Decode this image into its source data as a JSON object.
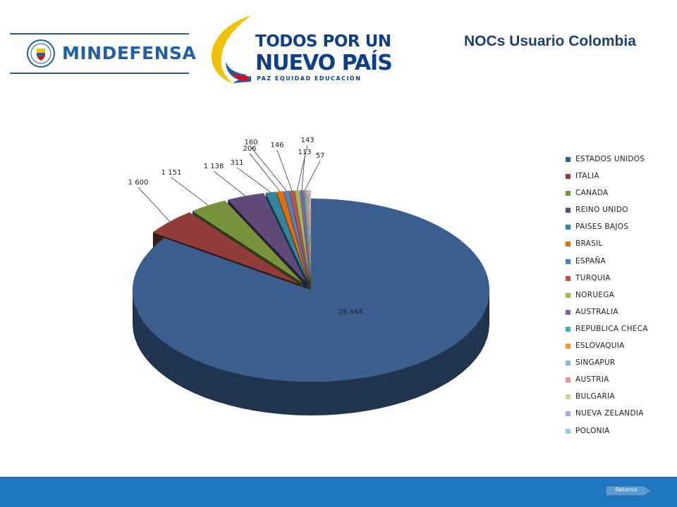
{
  "header": {
    "mindef_logo_text": "MINDEFENSA",
    "gov_slogan_line1": "TODOS POR UN",
    "gov_slogan_line2": "NUEVO PAÍS",
    "gov_slogan_line3": "PAZ  EQUIDAD  EDUCACIÓN",
    "title": "NOCs Usuario Colombia"
  },
  "chart_data": {
    "type": "pie",
    "style": "3d-exploded",
    "title": "",
    "legend_position": "right",
    "categories": [
      "ESTADOS UNIDOS",
      "ITALIA",
      "CANADA",
      "REINO UNIDO",
      "PAISES BAJOS",
      "BRASIL",
      "ESPAÑA",
      "TURQUIA",
      "NORUEGA",
      "AUSTRALIA",
      "REPUBLICA CHECA",
      "ESLOVAQUIA",
      "SINGAPUR",
      "AUSTRIA",
      "BULGARIA",
      "NUEVA ZELANDIA",
      "POLONIA"
    ],
    "values": [
      28444,
      1600,
      1151,
      1138,
      311,
      206,
      160,
      146,
      143,
      113,
      57,
      40,
      30,
      25,
      20,
      15,
      10
    ],
    "value_labels": [
      "28 444",
      "1 600",
      "1 151",
      "1 138",
      "311",
      "206",
      "160",
      "146",
      "143",
      "113",
      "57",
      "",
      "",
      "",
      "",
      "",
      ""
    ],
    "colors": [
      "#3a5f8f",
      "#923d3a",
      "#77933c",
      "#604a7b",
      "#31859c",
      "#e46c0a",
      "#4f81bd",
      "#c0504d",
      "#9bbb59",
      "#8064a2",
      "#4bacc6",
      "#f79646",
      "#95b3d7",
      "#d99694",
      "#c3d69b",
      "#b3a2c7",
      "#93cddd"
    ]
  },
  "footer": {
    "retorno_label": "Retorno"
  }
}
